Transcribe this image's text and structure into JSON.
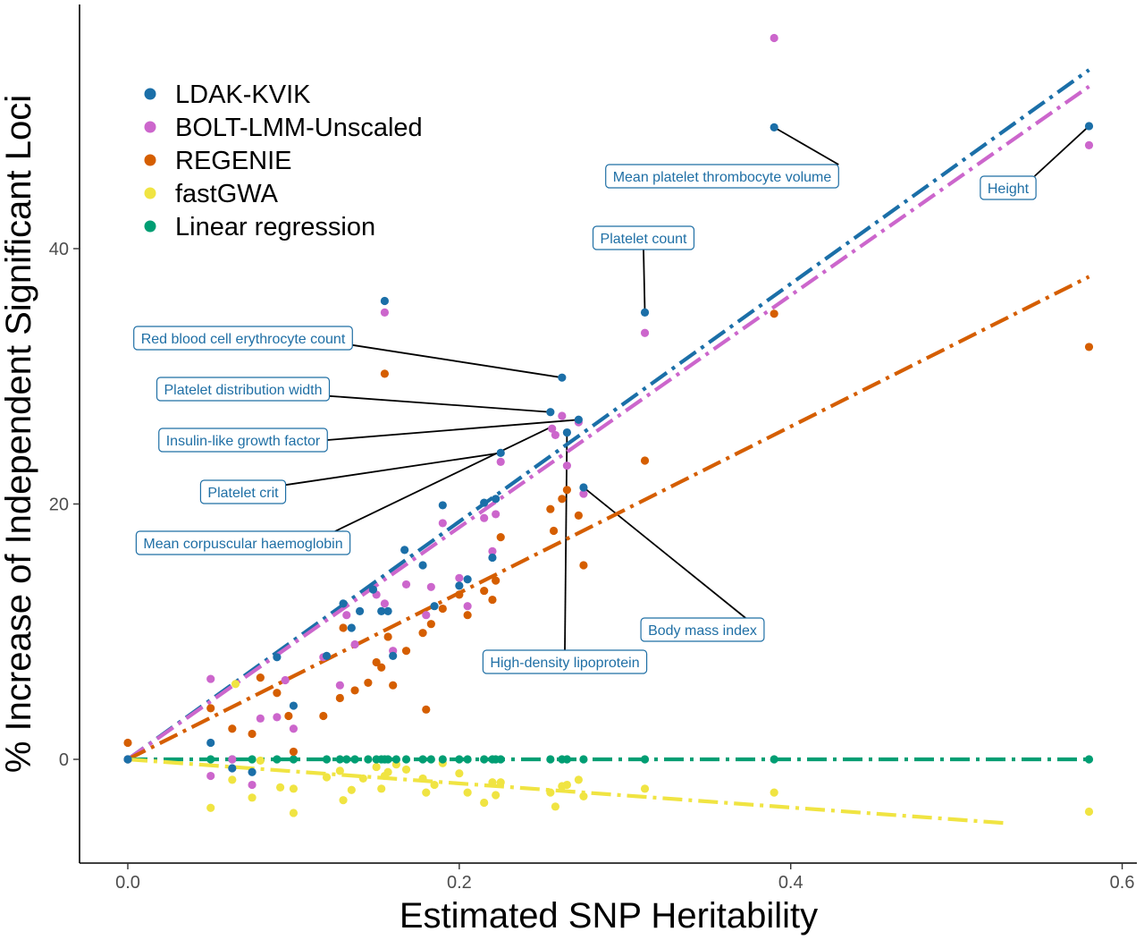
{
  "chart_data": {
    "type": "scatter",
    "xlabel": "Estimated SNP Heritability",
    "ylabel": "% Increase of Independent Significant Loci",
    "xlim": [
      -0.03,
      0.61
    ],
    "ylim": [
      -8,
      59.5
    ],
    "x_ticks": [
      "0.0",
      "0.2",
      "0.4",
      "0.6"
    ],
    "y_ticks": [
      "0",
      "20",
      "40"
    ],
    "grid": false,
    "legend_position": "top-left",
    "series": [
      {
        "name": "LDAK-KVIK",
        "color": "#1b6fa8",
        "trend": [
          [
            0.0,
            0.0
          ],
          [
            0.58,
            54.0
          ]
        ],
        "points": [
          [
            0.0,
            0
          ],
          [
            0.05,
            1.3
          ],
          [
            0.063,
            -0.7
          ],
          [
            0.075,
            -1.0
          ],
          [
            0.09,
            8.0
          ],
          [
            0.1,
            4.2
          ],
          [
            0.12,
            8.1
          ],
          [
            0.13,
            12.2
          ],
          [
            0.135,
            10.3
          ],
          [
            0.14,
            11.6
          ],
          [
            0.148,
            13.3
          ],
          [
            0.153,
            11.6
          ],
          [
            0.155,
            35.9
          ],
          [
            0.157,
            11.6
          ],
          [
            0.16,
            8.1
          ],
          [
            0.167,
            16.4
          ],
          [
            0.178,
            15.2
          ],
          [
            0.185,
            12.0
          ],
          [
            0.19,
            19.9
          ],
          [
            0.2,
            13.6
          ],
          [
            0.205,
            14.1
          ],
          [
            0.215,
            20.1
          ],
          [
            0.22,
            15.8
          ],
          [
            0.222,
            20.4
          ],
          [
            0.225,
            24.0
          ],
          [
            0.255,
            27.2
          ],
          [
            0.262,
            29.9
          ],
          [
            0.265,
            25.6
          ],
          [
            0.272,
            26.6
          ],
          [
            0.275,
            21.3
          ],
          [
            0.312,
            35.0
          ],
          [
            0.39,
            49.5
          ],
          [
            0.58,
            49.6
          ]
        ]
      },
      {
        "name": "BOLT-LMM-Unscaled",
        "color": "#cc66cc",
        "trend": [
          [
            0.0,
            0.0
          ],
          [
            0.58,
            52.7
          ]
        ],
        "points": [
          [
            0.0,
            0
          ],
          [
            0.05,
            6.3
          ],
          [
            0.05,
            -1.3
          ],
          [
            0.063,
            0
          ],
          [
            0.075,
            -2.0
          ],
          [
            0.08,
            3.2
          ],
          [
            0.09,
            3.3
          ],
          [
            0.095,
            6.2
          ],
          [
            0.1,
            2.4
          ],
          [
            0.118,
            8.0
          ],
          [
            0.128,
            5.8
          ],
          [
            0.132,
            11.3
          ],
          [
            0.137,
            9.0
          ],
          [
            0.15,
            12.9
          ],
          [
            0.155,
            35.0
          ],
          [
            0.155,
            12.2
          ],
          [
            0.16,
            8.5
          ],
          [
            0.168,
            13.7
          ],
          [
            0.18,
            11.3
          ],
          [
            0.183,
            13.5
          ],
          [
            0.19,
            18.5
          ],
          [
            0.2,
            14.2
          ],
          [
            0.205,
            12.0
          ],
          [
            0.215,
            18.9
          ],
          [
            0.22,
            16.3
          ],
          [
            0.222,
            19.2
          ],
          [
            0.225,
            23.3
          ],
          [
            0.256,
            25.9
          ],
          [
            0.258,
            25.4
          ],
          [
            0.262,
            26.9
          ],
          [
            0.265,
            23.0
          ],
          [
            0.272,
            26.4
          ],
          [
            0.275,
            20.8
          ],
          [
            0.312,
            33.4
          ],
          [
            0.39,
            56.5
          ],
          [
            0.58,
            48.1
          ]
        ]
      },
      {
        "name": "REGENIE",
        "color": "#d55e00",
        "trend": [
          [
            0.0,
            0.0
          ],
          [
            0.58,
            37.8
          ]
        ],
        "points": [
          [
            0.0,
            1.3
          ],
          [
            0.05,
            4.0
          ],
          [
            0.063,
            2.4
          ],
          [
            0.075,
            2.0
          ],
          [
            0.08,
            6.4
          ],
          [
            0.09,
            5.2
          ],
          [
            0.097,
            3.4
          ],
          [
            0.1,
            0.6
          ],
          [
            0.118,
            3.4
          ],
          [
            0.128,
            4.8
          ],
          [
            0.13,
            10.3
          ],
          [
            0.137,
            5.4
          ],
          [
            0.145,
            6.0
          ],
          [
            0.15,
            7.6
          ],
          [
            0.153,
            7.2
          ],
          [
            0.155,
            30.2
          ],
          [
            0.157,
            9.6
          ],
          [
            0.16,
            5.8
          ],
          [
            0.168,
            8.5
          ],
          [
            0.178,
            9.9
          ],
          [
            0.18,
            3.9
          ],
          [
            0.183,
            10.6
          ],
          [
            0.19,
            11.8
          ],
          [
            0.2,
            12.9
          ],
          [
            0.205,
            11.3
          ],
          [
            0.215,
            13.2
          ],
          [
            0.22,
            12.5
          ],
          [
            0.222,
            14.0
          ],
          [
            0.225,
            17.4
          ],
          [
            0.255,
            19.6
          ],
          [
            0.257,
            17.9
          ],
          [
            0.262,
            20.4
          ],
          [
            0.265,
            21.1
          ],
          [
            0.272,
            19.1
          ],
          [
            0.275,
            15.2
          ],
          [
            0.312,
            23.4
          ],
          [
            0.39,
            34.9
          ],
          [
            0.58,
            32.3
          ]
        ]
      },
      {
        "name": "fastGWA",
        "color": "#f0e442",
        "trend": [
          [
            0.0,
            0.0
          ],
          [
            0.53,
            -5.0
          ]
        ],
        "points": [
          [
            0.0,
            0
          ],
          [
            0.05,
            -3.8
          ],
          [
            0.063,
            -1.6
          ],
          [
            0.065,
            5.9
          ],
          [
            0.075,
            -3.0
          ],
          [
            0.08,
            -0.1
          ],
          [
            0.092,
            -2.2
          ],
          [
            0.1,
            -4.2
          ],
          [
            0.1,
            -2.3
          ],
          [
            0.12,
            -1.4
          ],
          [
            0.128,
            -0.9
          ],
          [
            0.13,
            -3.2
          ],
          [
            0.135,
            -2.4
          ],
          [
            0.142,
            -1.5
          ],
          [
            0.15,
            -0.6
          ],
          [
            0.153,
            -2.3
          ],
          [
            0.155,
            -1.3
          ],
          [
            0.157,
            -1.0
          ],
          [
            0.162,
            -0.4
          ],
          [
            0.168,
            -0.8
          ],
          [
            0.178,
            -1.5
          ],
          [
            0.18,
            -2.6
          ],
          [
            0.185,
            -2.0
          ],
          [
            0.19,
            -0.3
          ],
          [
            0.2,
            -1.1
          ],
          [
            0.205,
            -2.6
          ],
          [
            0.215,
            -3.4
          ],
          [
            0.22,
            -1.8
          ],
          [
            0.222,
            -2.8
          ],
          [
            0.225,
            -1.8
          ],
          [
            0.255,
            -2.6
          ],
          [
            0.258,
            -3.7
          ],
          [
            0.262,
            -2.1
          ],
          [
            0.265,
            -2.0
          ],
          [
            0.272,
            -1.6
          ],
          [
            0.275,
            -2.9
          ],
          [
            0.312,
            -2.3
          ],
          [
            0.39,
            -2.6
          ],
          [
            0.58,
            -4.1
          ]
        ]
      },
      {
        "name": "Linear regression",
        "color": "#009e73",
        "trend": [
          [
            0.0,
            0.0
          ],
          [
            0.58,
            0.0
          ]
        ],
        "points": [
          [
            0.0,
            0
          ],
          [
            0.05,
            0
          ],
          [
            0.063,
            0
          ],
          [
            0.075,
            0
          ],
          [
            0.09,
            0
          ],
          [
            0.1,
            0
          ],
          [
            0.12,
            0
          ],
          [
            0.128,
            0
          ],
          [
            0.132,
            0
          ],
          [
            0.137,
            0
          ],
          [
            0.145,
            0
          ],
          [
            0.15,
            0
          ],
          [
            0.153,
            0
          ],
          [
            0.155,
            0
          ],
          [
            0.157,
            0
          ],
          [
            0.162,
            0
          ],
          [
            0.168,
            0
          ],
          [
            0.178,
            0
          ],
          [
            0.183,
            0
          ],
          [
            0.19,
            0
          ],
          [
            0.2,
            0
          ],
          [
            0.205,
            0
          ],
          [
            0.215,
            0
          ],
          [
            0.22,
            0
          ],
          [
            0.222,
            0
          ],
          [
            0.225,
            0
          ],
          [
            0.255,
            0
          ],
          [
            0.262,
            0
          ],
          [
            0.265,
            0
          ],
          [
            0.275,
            0
          ],
          [
            0.312,
            0
          ],
          [
            0.39,
            0
          ],
          [
            0.58,
            0
          ]
        ]
      }
    ],
    "annotations": [
      {
        "label": "Mean platelet thrombocyte volume",
        "point": [
          0.39,
          49.5
        ]
      },
      {
        "label": "Height",
        "point": [
          0.58,
          49.6
        ]
      },
      {
        "label": "Platelet count",
        "point": [
          0.312,
          35.0
        ]
      },
      {
        "label": "Red blood cell erythrocyte count",
        "point": [
          0.262,
          29.9
        ]
      },
      {
        "label": "Platelet distribution width",
        "point": [
          0.255,
          27.2
        ]
      },
      {
        "label": "Insulin-like growth factor",
        "point": [
          0.272,
          26.6
        ]
      },
      {
        "label": "Platelet crit",
        "point": [
          0.225,
          24.0
        ]
      },
      {
        "label": "Mean corpuscular haemoglobin",
        "point": [
          0.255,
          26.0
        ]
      },
      {
        "label": "Body mass index",
        "point": [
          0.275,
          21.3
        ]
      },
      {
        "label": "High-density lipoprotein",
        "point": [
          0.265,
          25.6
        ]
      }
    ]
  }
}
